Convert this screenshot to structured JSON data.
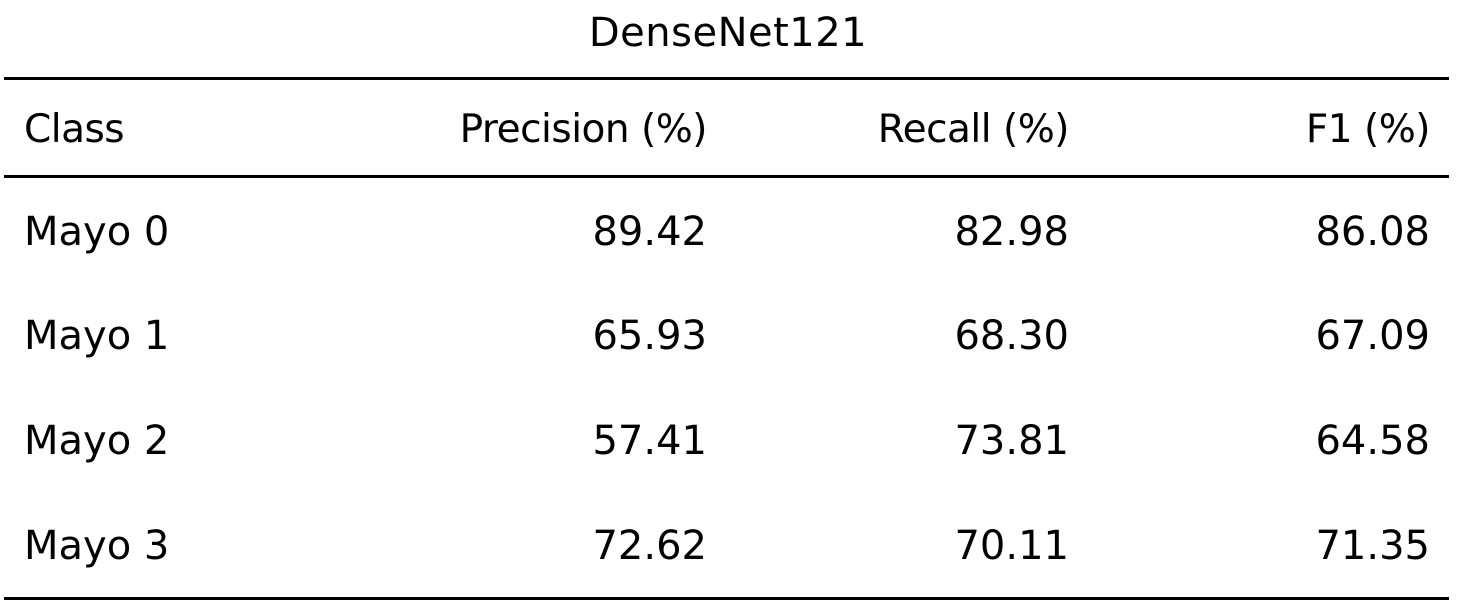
{
  "table": {
    "title": "DenseNet121",
    "headers": [
      "Class",
      "Precision (%)",
      "Recall (%)",
      "F1 (%)"
    ],
    "rows": [
      [
        "Mayo 0",
        "89.42",
        "82.98",
        "86.08"
      ],
      [
        "Mayo 1",
        "65.93",
        "68.30",
        "67.09"
      ],
      [
        "Mayo 2",
        "57.41",
        "73.81",
        "64.58"
      ],
      [
        "Mayo 3",
        "72.62",
        "70.11",
        "71.35"
      ]
    ]
  }
}
